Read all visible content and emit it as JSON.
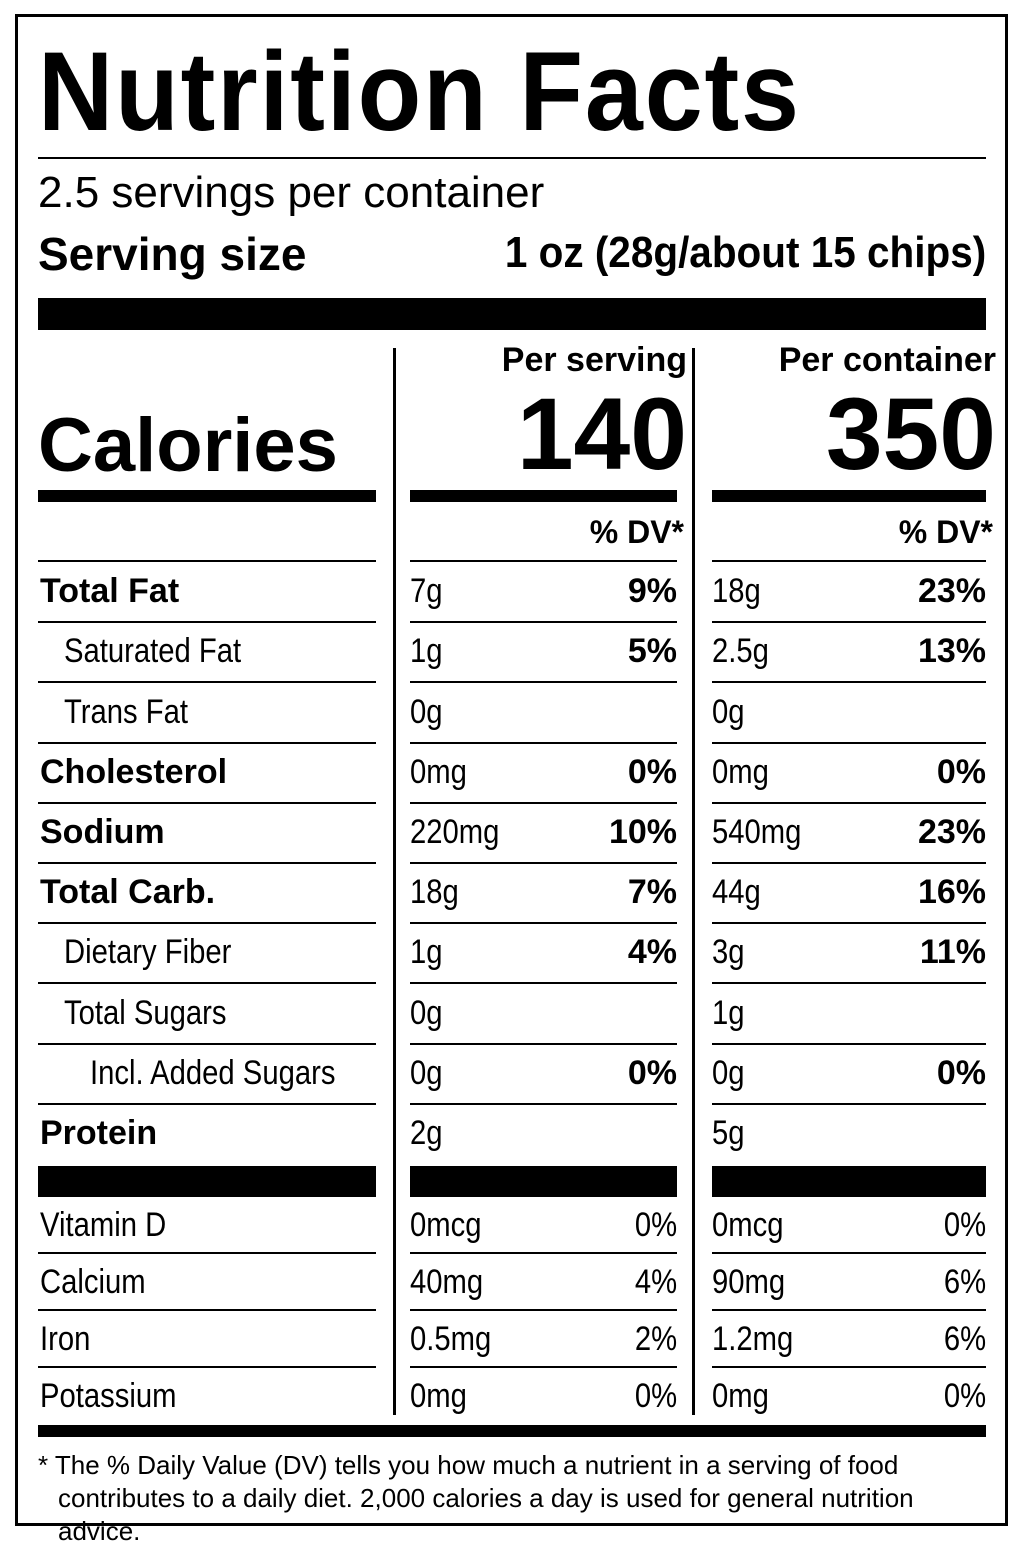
{
  "title": "Nutrition Facts",
  "servings": "2.5 servings per container",
  "serving_size": {
    "label": "Serving size",
    "value": "1 oz (28g/about 15 chips)"
  },
  "calories": {
    "label": "Calories",
    "columns": [
      {
        "header": "Per serving",
        "value": "140",
        "dv_header": "% DV*"
      },
      {
        "header": "Per container",
        "value": "350",
        "dv_header": "% DV*"
      }
    ]
  },
  "nutrients": [
    {
      "name": "Total Fat",
      "serving": {
        "amount": "7g",
        "dv": "9%"
      },
      "container": {
        "amount": "18g",
        "dv": "23%"
      }
    },
    {
      "name": "Saturated Fat",
      "serving": {
        "amount": "1g",
        "dv": "5%"
      },
      "container": {
        "amount": "2.5g",
        "dv": "13%"
      }
    },
    {
      "name": "Trans Fat",
      "serving": {
        "amount": "0g"
      },
      "container": {
        "amount": "0g"
      }
    },
    {
      "name": "Cholesterol",
      "serving": {
        "amount": "0mg",
        "dv": "0%"
      },
      "container": {
        "amount": "0mg",
        "dv": "0%"
      }
    },
    {
      "name": "Sodium",
      "serving": {
        "amount": "220mg",
        "dv": "10%"
      },
      "container": {
        "amount": "540mg",
        "dv": "23%"
      }
    },
    {
      "name": "Total Carb.",
      "serving": {
        "amount": "18g",
        "dv": "7%"
      },
      "container": {
        "amount": "44g",
        "dv": "16%"
      }
    },
    {
      "name": "Dietary Fiber",
      "serving": {
        "amount": "1g",
        "dv": "4%"
      },
      "container": {
        "amount": "3g",
        "dv": "11%"
      }
    },
    {
      "name": "Total Sugars",
      "serving": {
        "amount": "0g"
      },
      "container": {
        "amount": "1g"
      }
    },
    {
      "name": "Incl. Added Sugars",
      "serving": {
        "amount": "0g",
        "dv": "0%"
      },
      "container": {
        "amount": "0g",
        "dv": "0%"
      }
    },
    {
      "name": "Protein",
      "serving": {
        "amount": "2g"
      },
      "container": {
        "amount": "5g"
      }
    }
  ],
  "vitamins": [
    {
      "name": "Vitamin D",
      "serving": {
        "amount": "0mcg",
        "dv": "0%"
      },
      "container": {
        "amount": "0mcg",
        "dv": "0%"
      }
    },
    {
      "name": "Calcium",
      "serving": {
        "amount": "40mg",
        "dv": "4%"
      },
      "container": {
        "amount": "90mg",
        "dv": "6%"
      }
    },
    {
      "name": "Iron",
      "serving": {
        "amount": "0.5mg",
        "dv": "2%"
      },
      "container": {
        "amount": "1.2mg",
        "dv": "6%"
      }
    },
    {
      "name": "Potassium",
      "serving": {
        "amount": "0mg",
        "dv": "0%"
      },
      "container": {
        "amount": "0mg",
        "dv": "0%"
      }
    }
  ],
  "footnote": "* The % Daily Value (DV) tells you how much a nutrient in a serving of food contributes to a daily diet. 2,000 calories a day is used for general nutrition advice."
}
